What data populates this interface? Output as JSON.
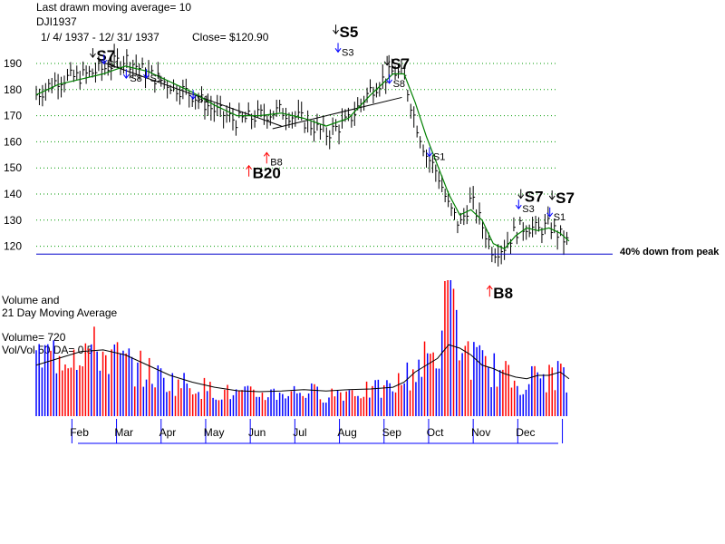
{
  "header": {
    "line1": "Last drawn moving average= 10",
    "line2": "DJI1937",
    "line3": "1/ 4/ 1937 - 12/ 31/ 1937",
    "close": "Close= $120.90"
  },
  "volume_panel": {
    "title1": "Volume and",
    "title2": "21 Day Moving Average",
    "volume": "Volume= 720",
    "ratio": "Vol/Vol 50 DA= 0.5"
  },
  "annotation": "40% down from peak",
  "colors": {
    "ma_line": "#008000",
    "baseline": "#0000cc",
    "vol_up": "#0000ff",
    "vol_down": "#ff0000",
    "grid": "#009900",
    "buy_arrow": "#ff0000",
    "sell_arrow": "#0000ff",
    "sell_arrow_alt": "#ff00ff"
  },
  "signals": [
    {
      "label": "S7",
      "month": 2.35,
      "price": 191,
      "big": true
    },
    {
      "label": "S1",
      "month": 2.6,
      "price": 188.5,
      "big": false
    },
    {
      "label": "S8",
      "month": 3.1,
      "price": 183,
      "big": false
    },
    {
      "label": "S1",
      "month": 3.55,
      "price": 183,
      "big": false
    },
    {
      "label": "S1",
      "month": 4.6,
      "price": 175,
      "big": false
    },
    {
      "label": "B20",
      "month": 5.85,
      "price": 146,
      "big": true
    },
    {
      "label": "B8",
      "month": 6.25,
      "price": 151,
      "big": false
    },
    {
      "label": "S5",
      "month": 7.8,
      "price": 200,
      "big": true
    },
    {
      "label": "S3",
      "month": 7.85,
      "price": 193,
      "big": false
    },
    {
      "label": "S7",
      "month": 8.95,
      "price": 188,
      "big": true
    },
    {
      "label": "S8",
      "month": 9.0,
      "price": 181,
      "big": false
    },
    {
      "label": "S1",
      "month": 9.9,
      "price": 153,
      "big": false
    },
    {
      "label": "S7",
      "month": 11.95,
      "price": 137,
      "big": true
    },
    {
      "label": "S3",
      "month": 11.9,
      "price": 133,
      "big": false
    },
    {
      "label": "S7",
      "month": 12.65,
      "price": 136.5,
      "big": true
    },
    {
      "label": "S1",
      "month": 12.6,
      "price": 130,
      "big": false
    },
    {
      "label": "B8",
      "month": 11.25,
      "price": 100,
      "big": true
    }
  ],
  "chart_data": [
    {
      "type": "line",
      "title": "DJI1937",
      "ylim": [
        115,
        195
      ],
      "yticks": [
        120,
        130,
        140,
        150,
        160,
        170,
        180,
        190
      ],
      "xticks": [
        "Feb",
        "Mar",
        "Apr",
        "May",
        "Jun",
        "Jul",
        "Aug",
        "Sep",
        "Oct",
        "Nov",
        "Dec"
      ],
      "x": [
        1.0,
        1.5,
        2.0,
        2.5,
        3.0,
        3.5,
        4.0,
        4.5,
        5.0,
        5.5,
        6.0,
        6.5,
        7.0,
        7.5,
        8.0,
        8.5,
        9.0,
        9.25,
        9.5,
        9.75,
        10.0,
        10.25,
        10.5,
        10.75,
        11.0,
        11.25,
        11.5,
        11.75,
        12.0,
        12.25,
        12.5,
        12.75,
        12.95
      ],
      "series": [
        {
          "values": [
            178,
            184,
            185,
            188,
            192,
            186,
            182,
            178,
            172,
            168,
            170,
            172,
            168,
            163,
            168,
            180,
            187,
            185,
            168,
            155,
            148,
            135,
            128,
            138,
            128,
            118,
            120,
            126,
            128,
            126,
            128,
            124,
            120.9
          ]
        },
        {
          "values": [
            178,
            182,
            184,
            186,
            189,
            187,
            183,
            179,
            174,
            170,
            170,
            171,
            169,
            166,
            169,
            178,
            186,
            186,
            175,
            162,
            151,
            140,
            132,
            134,
            130,
            121,
            119,
            124,
            127,
            126,
            127,
            125,
            122
          ]
        }
      ],
      "baseline": 117,
      "grid": true
    },
    {
      "type": "bar",
      "title": "Volume and 21 Day Moving Average",
      "x": [
        1.0,
        1.5,
        2.0,
        2.5,
        3.0,
        3.5,
        4.0,
        4.5,
        5.0,
        5.5,
        6.0,
        6.5,
        7.0,
        7.5,
        8.0,
        8.5,
        9.0,
        9.25,
        9.5,
        9.75,
        10.0,
        10.25,
        10.5,
        10.75,
        11.0,
        11.25,
        11.5,
        11.75,
        12.0,
        12.25,
        12.5,
        12.75,
        12.95
      ],
      "values": [
        1800,
        2000,
        2200,
        2000,
        1700,
        1400,
        1100,
        1000,
        800,
        700,
        700,
        750,
        800,
        700,
        800,
        800,
        900,
        1200,
        1500,
        1800,
        1900,
        4000,
        2200,
        1900,
        1600,
        1500,
        1300,
        1100,
        1100,
        1300,
        1200,
        1500,
        720
      ],
      "avg": [
        1500,
        1700,
        1900,
        1950,
        1800,
        1500,
        1200,
        1000,
        850,
        750,
        720,
        740,
        780,
        740,
        780,
        800,
        850,
        1000,
        1300,
        1500,
        1700,
        2100,
        2000,
        1800,
        1500,
        1400,
        1250,
        1150,
        1100,
        1200,
        1200,
        1300,
        1100
      ]
    }
  ]
}
